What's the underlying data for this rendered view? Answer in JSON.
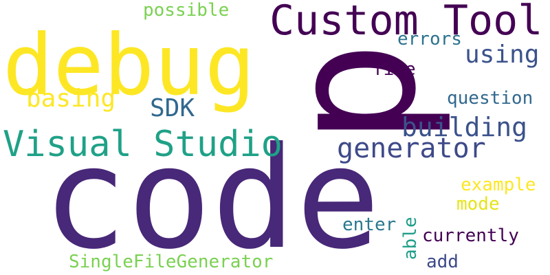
{
  "words": [
    {
      "id": "code",
      "text": "code",
      "color": "#482878"
    },
    {
      "id": "p",
      "text": "p",
      "color": "#440154"
    },
    {
      "id": "debug",
      "text": "debug",
      "color": "#fde725"
    },
    {
      "id": "custom-tool",
      "text": "Custom Tool",
      "color": "#440154"
    },
    {
      "id": "visual-studio",
      "text": "Visual Studio",
      "color": "#1fa187"
    },
    {
      "id": "generator",
      "text": "generator",
      "color": "#3e4a89"
    },
    {
      "id": "building",
      "text": "building",
      "color": "#3b528b"
    },
    {
      "id": "using",
      "text": "using",
      "color": "#3b528b"
    },
    {
      "id": "basing",
      "text": "basing",
      "color": "#fde725"
    },
    {
      "id": "sdk",
      "text": "SDK",
      "color": "#31688e"
    },
    {
      "id": "errors",
      "text": "errors",
      "color": "#2c728e"
    },
    {
      "id": "file",
      "text": "file",
      "color": "#440154"
    },
    {
      "id": "question",
      "text": "question",
      "color": "#31688e"
    },
    {
      "id": "possible",
      "text": "possible",
      "color": "#7ad151"
    },
    {
      "id": "example",
      "text": "example",
      "color": "#fde725"
    },
    {
      "id": "mode",
      "text": "mode",
      "color": "#e5e419"
    },
    {
      "id": "enter",
      "text": "enter",
      "color": "#2a788e"
    },
    {
      "id": "able",
      "text": "able",
      "color": "#1f9e89"
    },
    {
      "id": "currently",
      "text": "currently",
      "color": "#440154"
    },
    {
      "id": "singlefilegenerator",
      "text": "SingleFileGenerator",
      "color": "#7ad151"
    },
    {
      "id": "add",
      "text": "add",
      "color": "#3e4a89"
    }
  ]
}
